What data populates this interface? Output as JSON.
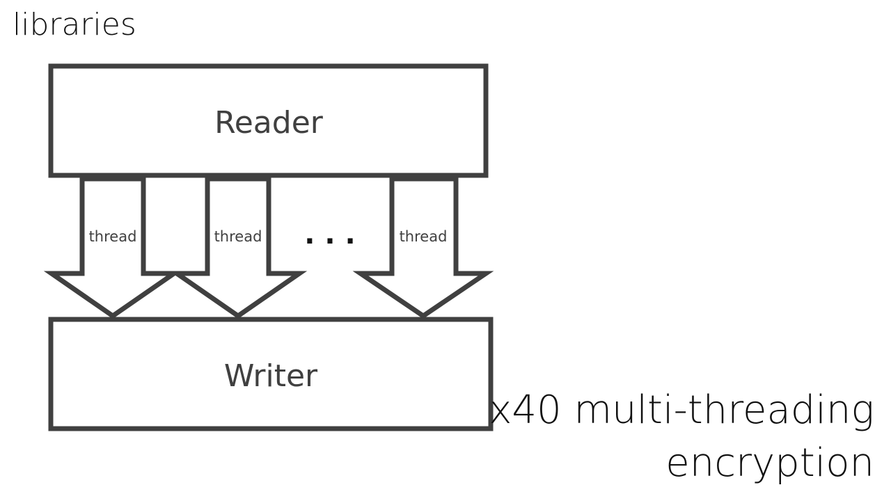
{
  "page": {
    "title": "libraries"
  },
  "diagram": {
    "reader_label": "Reader",
    "writer_label": "Writer",
    "arrows": [
      {
        "label": "thread"
      },
      {
        "label": "thread"
      },
      {
        "label": "thread"
      }
    ],
    "ellipsis": ". . ."
  },
  "caption": {
    "line1": "x40 multi-threading",
    "line2": "encryption"
  }
}
